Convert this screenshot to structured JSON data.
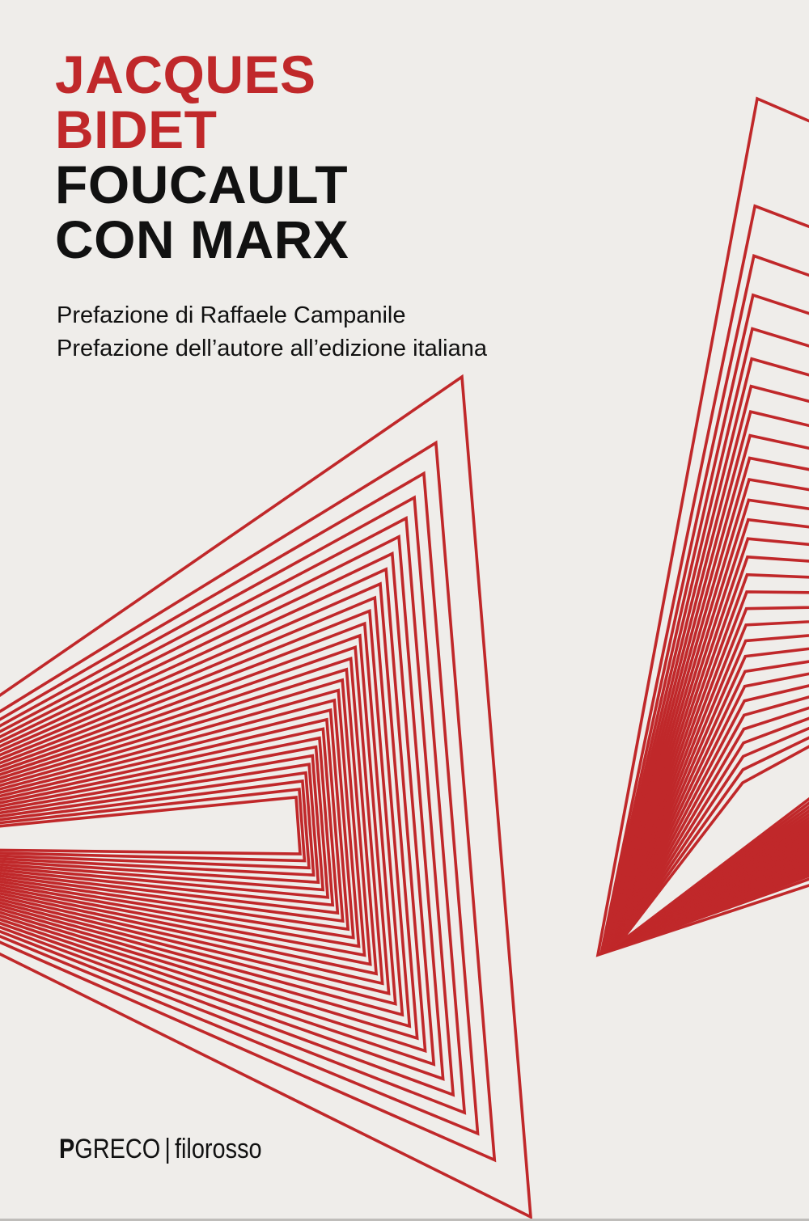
{
  "cover": {
    "author_lines": [
      "JACQUES",
      "BIDET"
    ],
    "title_lines": [
      "FOUCAULT",
      "CON MARX"
    ],
    "subtitles": [
      "Prefazione di Raffaele Campanile",
      "Prefazione dell’autore all’edizione italiana"
    ],
    "publisher": {
      "mark": "P",
      "name": "GRECO",
      "separator": "|",
      "series": "filorosso"
    }
  },
  "colors": {
    "accent": "#c0282a",
    "background": "#efedea",
    "text": "#111111"
  }
}
